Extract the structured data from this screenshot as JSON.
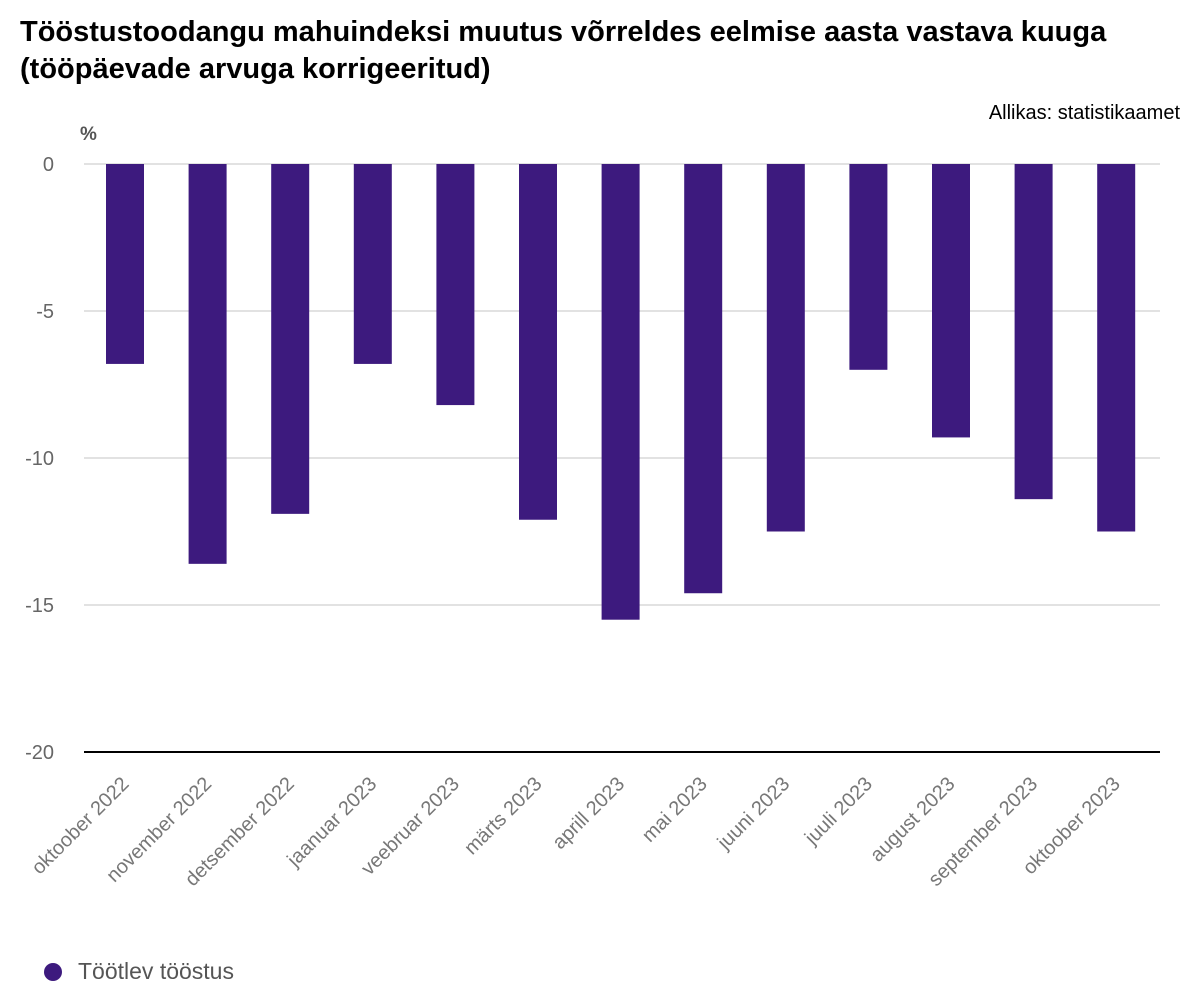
{
  "chart": {
    "title": "Tööstustoodangu mahuindeksi muutus võrreldes eelmise aasta vastava kuuga (tööpäevade arvuga korrigeeritud)",
    "source": "Allikas: statistikaamet",
    "unit": "%",
    "bar_color": "#3d1a7e"
  },
  "chart_data": {
    "type": "bar",
    "title": "Tööstustoodangu mahuindeksi muutus võrreldes eelmise aasta vastava kuuga (tööpäevade arvuga korrigeeritud)",
    "ylabel": "%",
    "xlabel": "",
    "categories": [
      "oktoober 2022",
      "november 2022",
      "detsember 2022",
      "jaanuar 2023",
      "veebruar 2023",
      "märts 2023",
      "aprill 2023",
      "mai 2023",
      "juuni 2023",
      "juuli 2023",
      "august 2023",
      "september 2023",
      "oktoober 2023"
    ],
    "series": [
      {
        "name": "Töötlev tööstus",
        "color": "#3d1a7e",
        "values": [
          -6.8,
          -13.6,
          -11.9,
          -6.8,
          -8.2,
          -12.1,
          -15.5,
          -14.6,
          -12.5,
          -7.0,
          -9.3,
          -11.4,
          -12.5
        ]
      }
    ],
    "ylim": [
      -20,
      0
    ],
    "yticks": [
      0,
      -5,
      -10,
      -15,
      -20
    ],
    "grid": true,
    "legend_position": "bottom-left"
  }
}
